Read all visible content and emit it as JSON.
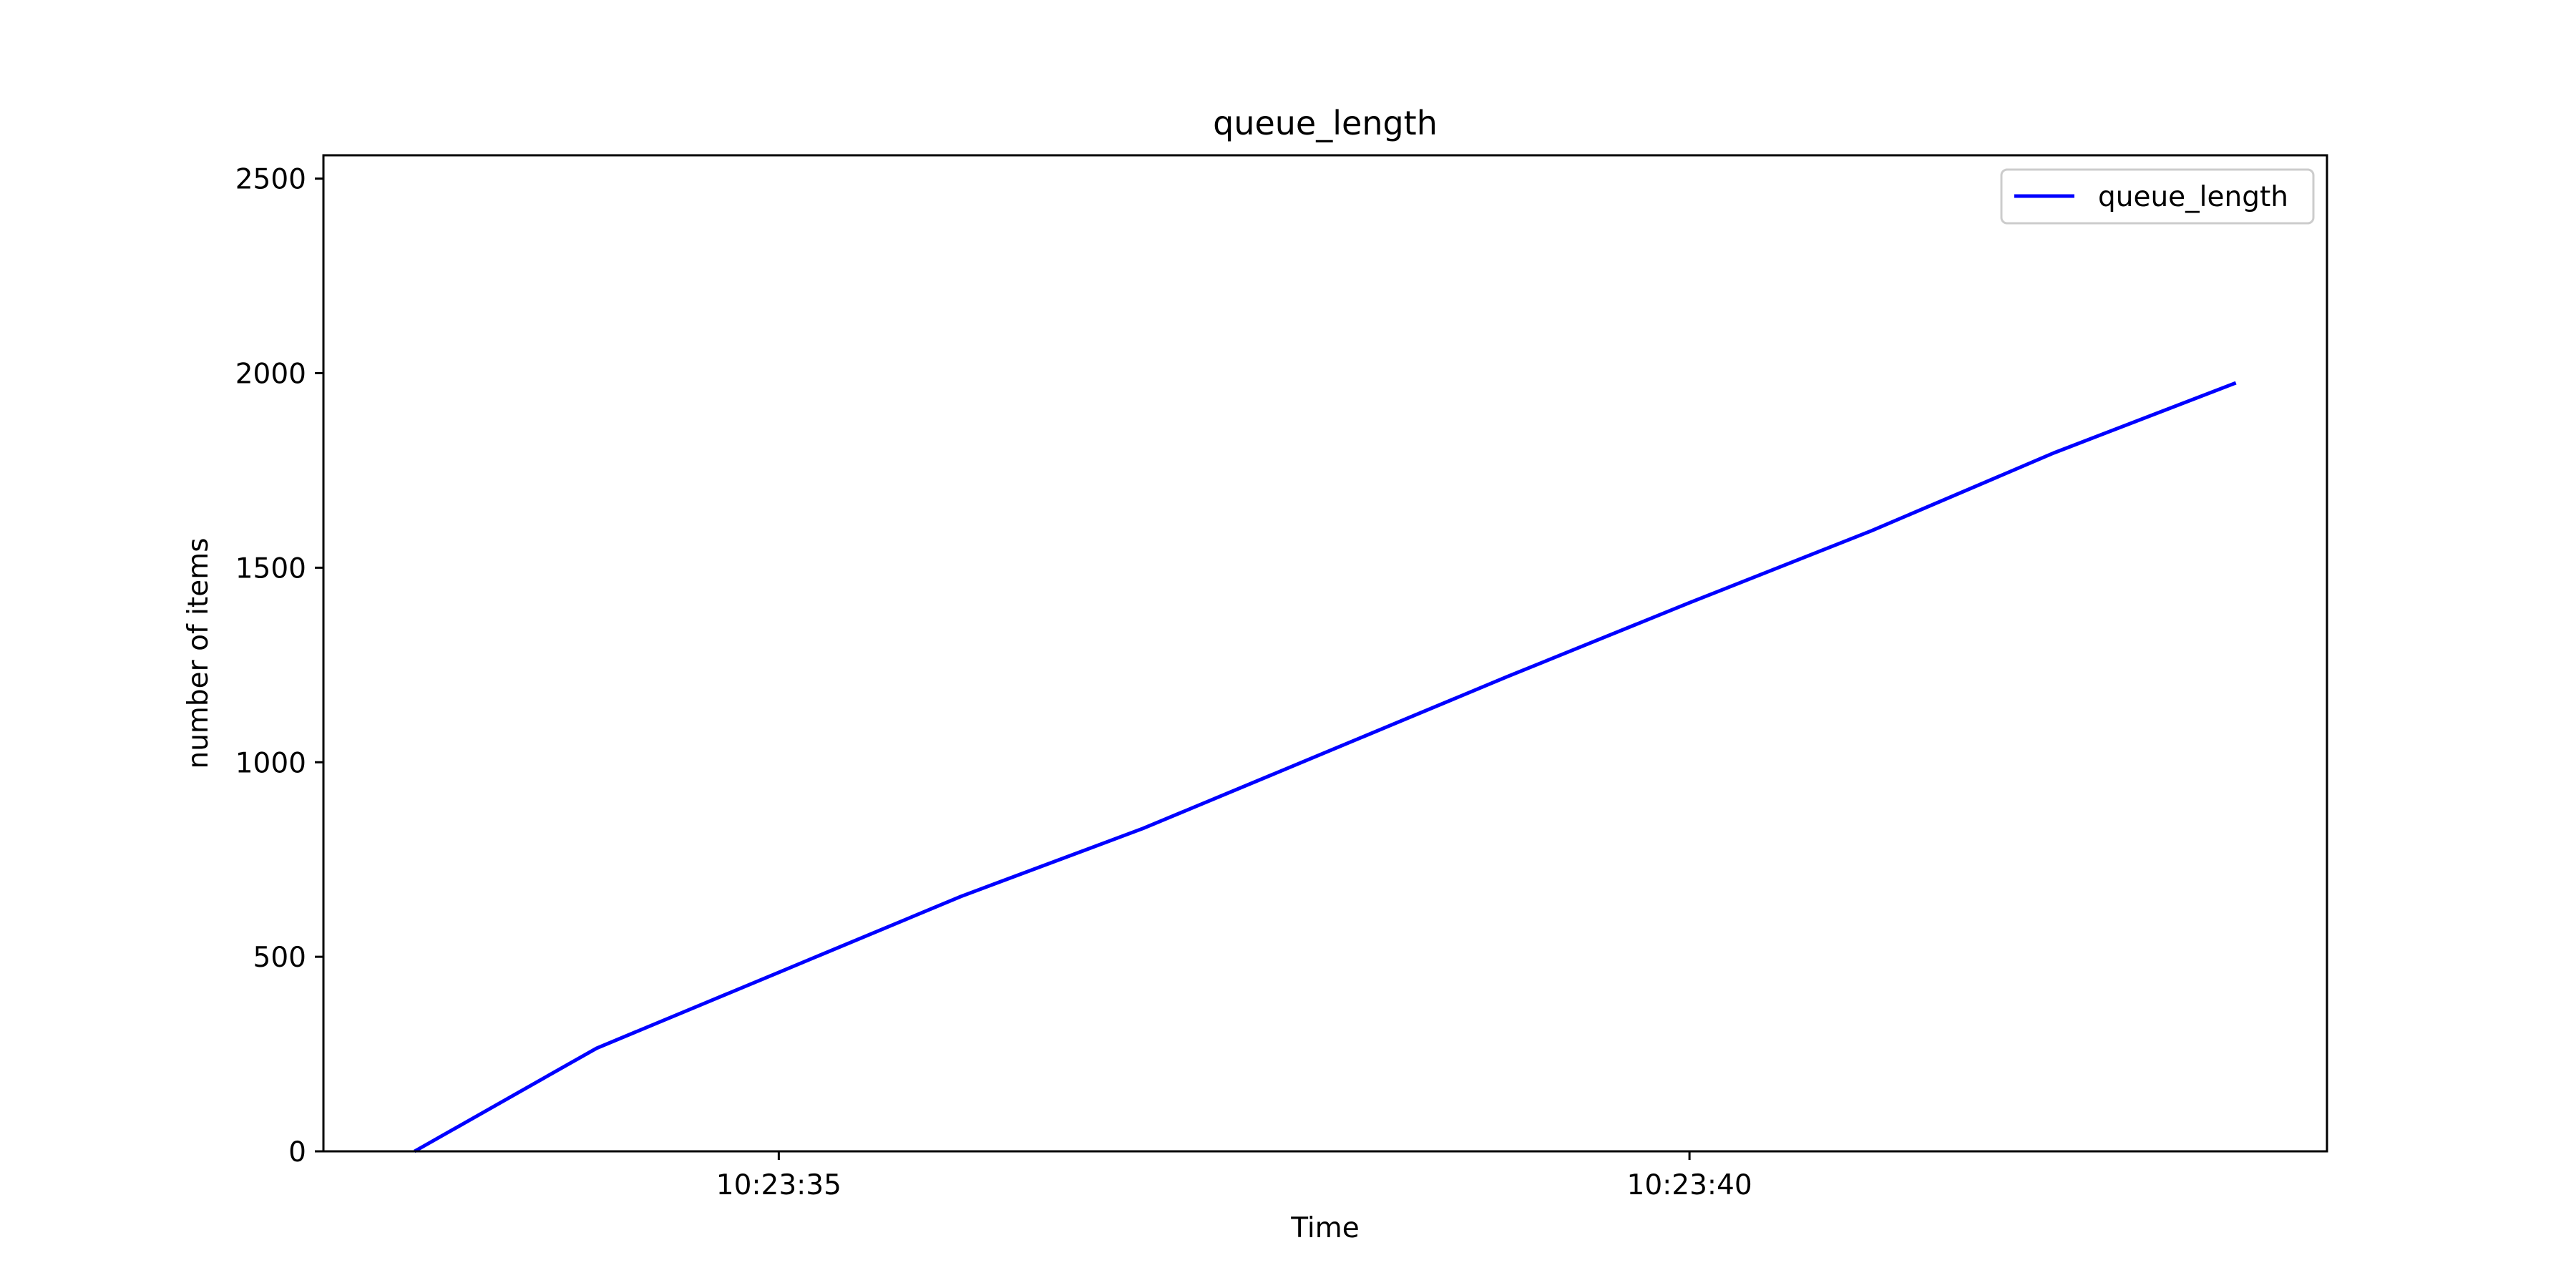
{
  "chart_data": {
    "type": "line",
    "title": "queue_length",
    "xlabel": "Time",
    "ylabel": "number of items",
    "x_type": "time",
    "x_ticks": [
      "10:23:35",
      "10:23:40"
    ],
    "xlim": [
      "10:23:32.5",
      "10:23:43.5"
    ],
    "y_ticks": [
      0,
      500,
      1000,
      1500,
      2000,
      2500
    ],
    "ylim": [
      0,
      2560
    ],
    "grid": false,
    "legend": {
      "position": "top-right",
      "entries": [
        "queue_length"
      ]
    },
    "series": [
      {
        "name": "queue_length",
        "color": "#0000ff",
        "x": [
          "10:23:33.0",
          "10:23:34.0",
          "10:23:35.0",
          "10:23:36.0",
          "10:23:37.0",
          "10:23:38.0",
          "10:23:39.0",
          "10:23:40.0",
          "10:23:41.0",
          "10:23:42.0",
          "10:23:43.0"
        ],
        "y": [
          0,
          265,
          460,
          655,
          830,
          1025,
          1220,
          1410,
          1595,
          1795,
          1975
        ]
      }
    ]
  }
}
